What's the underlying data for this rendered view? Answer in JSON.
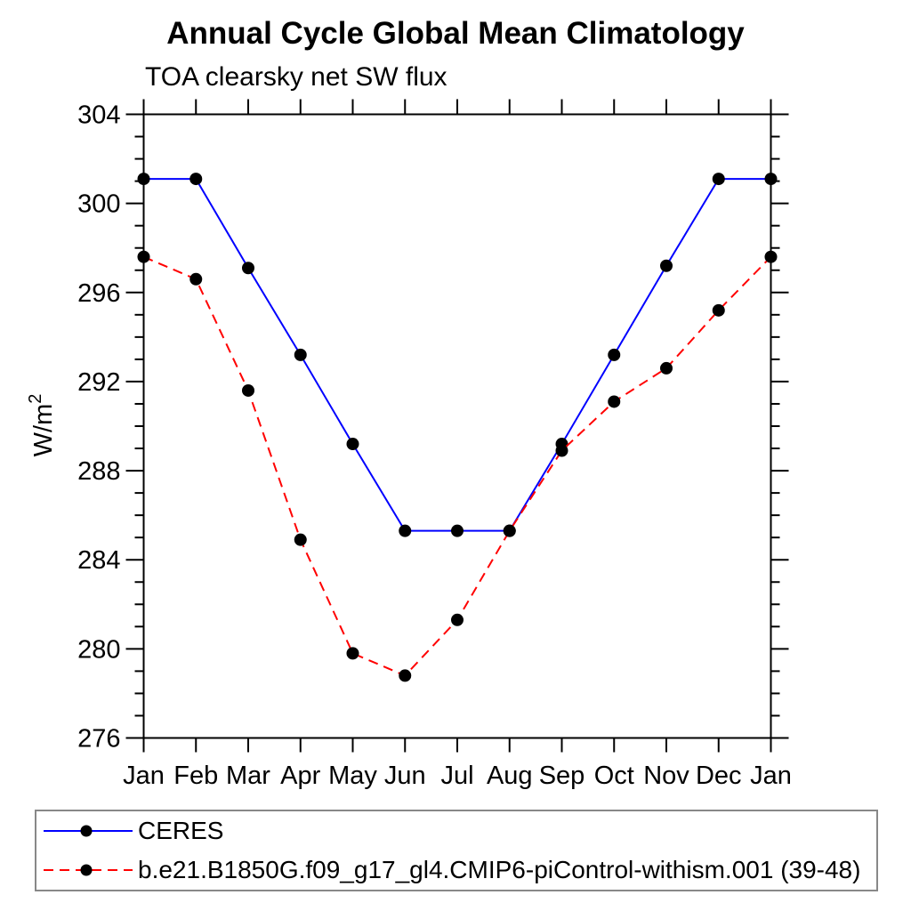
{
  "title": "Annual Cycle Global Mean Climatology",
  "subtitle": "TOA clearsky net SW flux",
  "colors": {
    "ceres_line": "#0000ff",
    "model_line": "#ff0000",
    "marker": "#000000",
    "axis": "#000000",
    "legend_border": "#888888"
  },
  "chart_data": {
    "type": "line",
    "x_categories": [
      "Jan",
      "Feb",
      "Mar",
      "Apr",
      "May",
      "Jun",
      "Jul",
      "Aug",
      "Sep",
      "Oct",
      "Nov",
      "Dec",
      "Jan"
    ],
    "title": "Annual Cycle Global Mean Climatology",
    "subtitle": "TOA clearsky net SW flux",
    "xlabel": "",
    "ylabel": "W/m²",
    "ylim": [
      276,
      304
    ],
    "yticks": [
      276,
      280,
      284,
      288,
      292,
      296,
      300,
      304
    ],
    "ytick_minor_step": 1,
    "grid": false,
    "legend_position": "bottom-left",
    "series": [
      {
        "name": "CERES",
        "color": "#0000ff",
        "line_style": "solid",
        "marker": "filled-circle",
        "marker_color": "#000000",
        "values": [
          301.1,
          301.1,
          297.1,
          293.2,
          289.2,
          285.3,
          285.3,
          285.3,
          289.2,
          293.2,
          297.2,
          301.1,
          301.1
        ]
      },
      {
        "name": "b.e21.B1850G.f09_g17_gl4.CMIP6-piControl-withism.001 (39-48)",
        "color": "#ff0000",
        "line_style": "dashed",
        "marker": "filled-circle",
        "marker_color": "#000000",
        "values": [
          297.6,
          296.6,
          291.6,
          284.9,
          279.8,
          278.8,
          281.3,
          285.3,
          288.9,
          291.1,
          292.6,
          295.2,
          297.6
        ]
      }
    ]
  }
}
